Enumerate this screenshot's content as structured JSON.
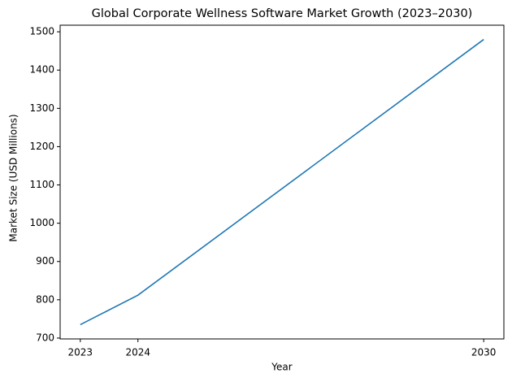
{
  "chart_data": {
    "type": "line",
    "title": "Global Corporate Wellness Software Market Growth (2023–2030)",
    "x_label": "Year",
    "y_label": "Market Size (USD Millions)",
    "x": [
      2023,
      2024,
      2030
    ],
    "series": [
      {
        "name": "Market Size",
        "color": "#1f77b4",
        "values": [
          735,
          812,
          1480
        ]
      }
    ],
    "xlim": [
      2022.65,
      2030.35
    ],
    "xticks": [
      2023,
      2024,
      2030
    ],
    "ylim": [
      697.75,
      1517.25
    ],
    "yticks": [
      700,
      800,
      900,
      1000,
      1100,
      1200,
      1300,
      1400,
      1500
    ],
    "grid": false
  }
}
